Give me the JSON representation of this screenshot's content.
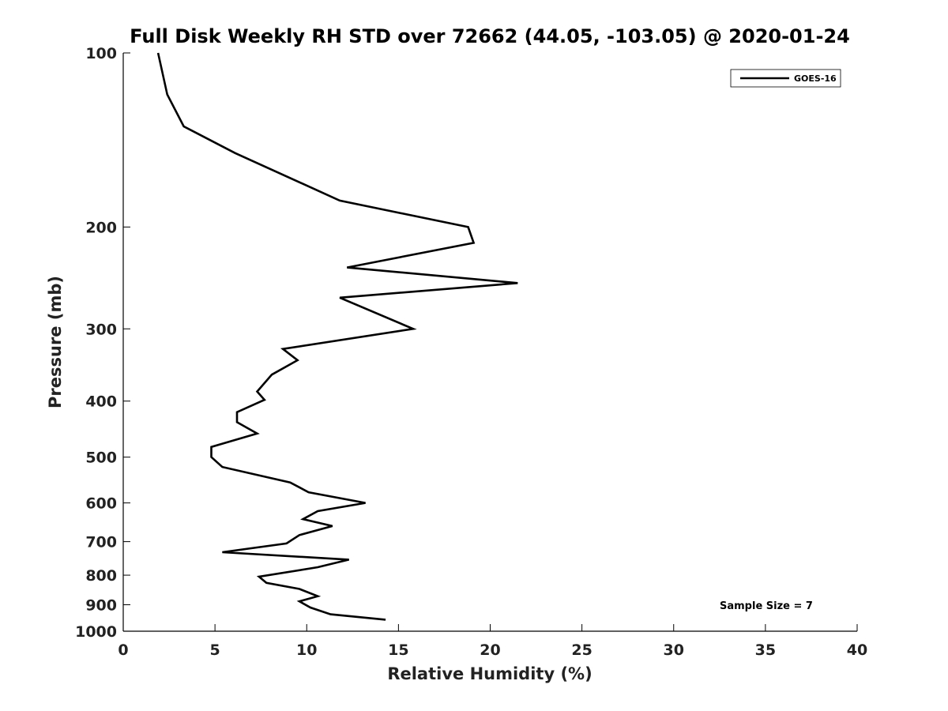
{
  "chart_data": {
    "type": "line",
    "title": "Full Disk Weekly RH STD over 72662 (44.05, -103.05) @ 2020-01-24",
    "xlabel": "Relative Humidity (%)",
    "ylabel": "Pressure (mb)",
    "xlim": [
      0,
      40
    ],
    "ylim": [
      100,
      1000
    ],
    "y_scale": "log",
    "y_reversed": true,
    "x_ticks": [
      "0",
      "5",
      "10",
      "15",
      "20",
      "25",
      "30",
      "35",
      "40"
    ],
    "y_ticks": [
      "100",
      "200",
      "300",
      "400",
      "500",
      "600",
      "700",
      "800",
      "900",
      "1000"
    ],
    "grid": false,
    "legend_position": "top-right",
    "annotation": "Sample Size = 7",
    "series": [
      {
        "name": "GOES-16",
        "color": "#000000",
        "x": [
          1.9,
          2.4,
          3.3,
          6.1,
          11.8,
          18.8,
          19.1,
          12.2,
          21.5,
          11.8,
          15.8,
          8.7,
          9.5,
          8.1,
          7.3,
          7.7,
          6.2,
          6.2,
          7.3,
          4.8,
          4.8,
          5.4,
          9.1,
          10.1,
          13.2,
          10.6,
          9.8,
          11.4,
          9.6,
          8.9,
          5.4,
          12.3,
          10.6,
          7.4,
          7.8,
          9.6,
          10.6,
          9.6,
          10.2,
          11.3,
          14.3
        ],
        "y": [
          100,
          118,
          134,
          149,
          180,
          200,
          213,
          235,
          250,
          265,
          300,
          325,
          340,
          360,
          385,
          398,
          418,
          435,
          455,
          480,
          500,
          520,
          553,
          575,
          600,
          620,
          640,
          658,
          682,
          705,
          730,
          752,
          775,
          805,
          825,
          845,
          870,
          888,
          910,
          935,
          955
        ]
      }
    ]
  }
}
